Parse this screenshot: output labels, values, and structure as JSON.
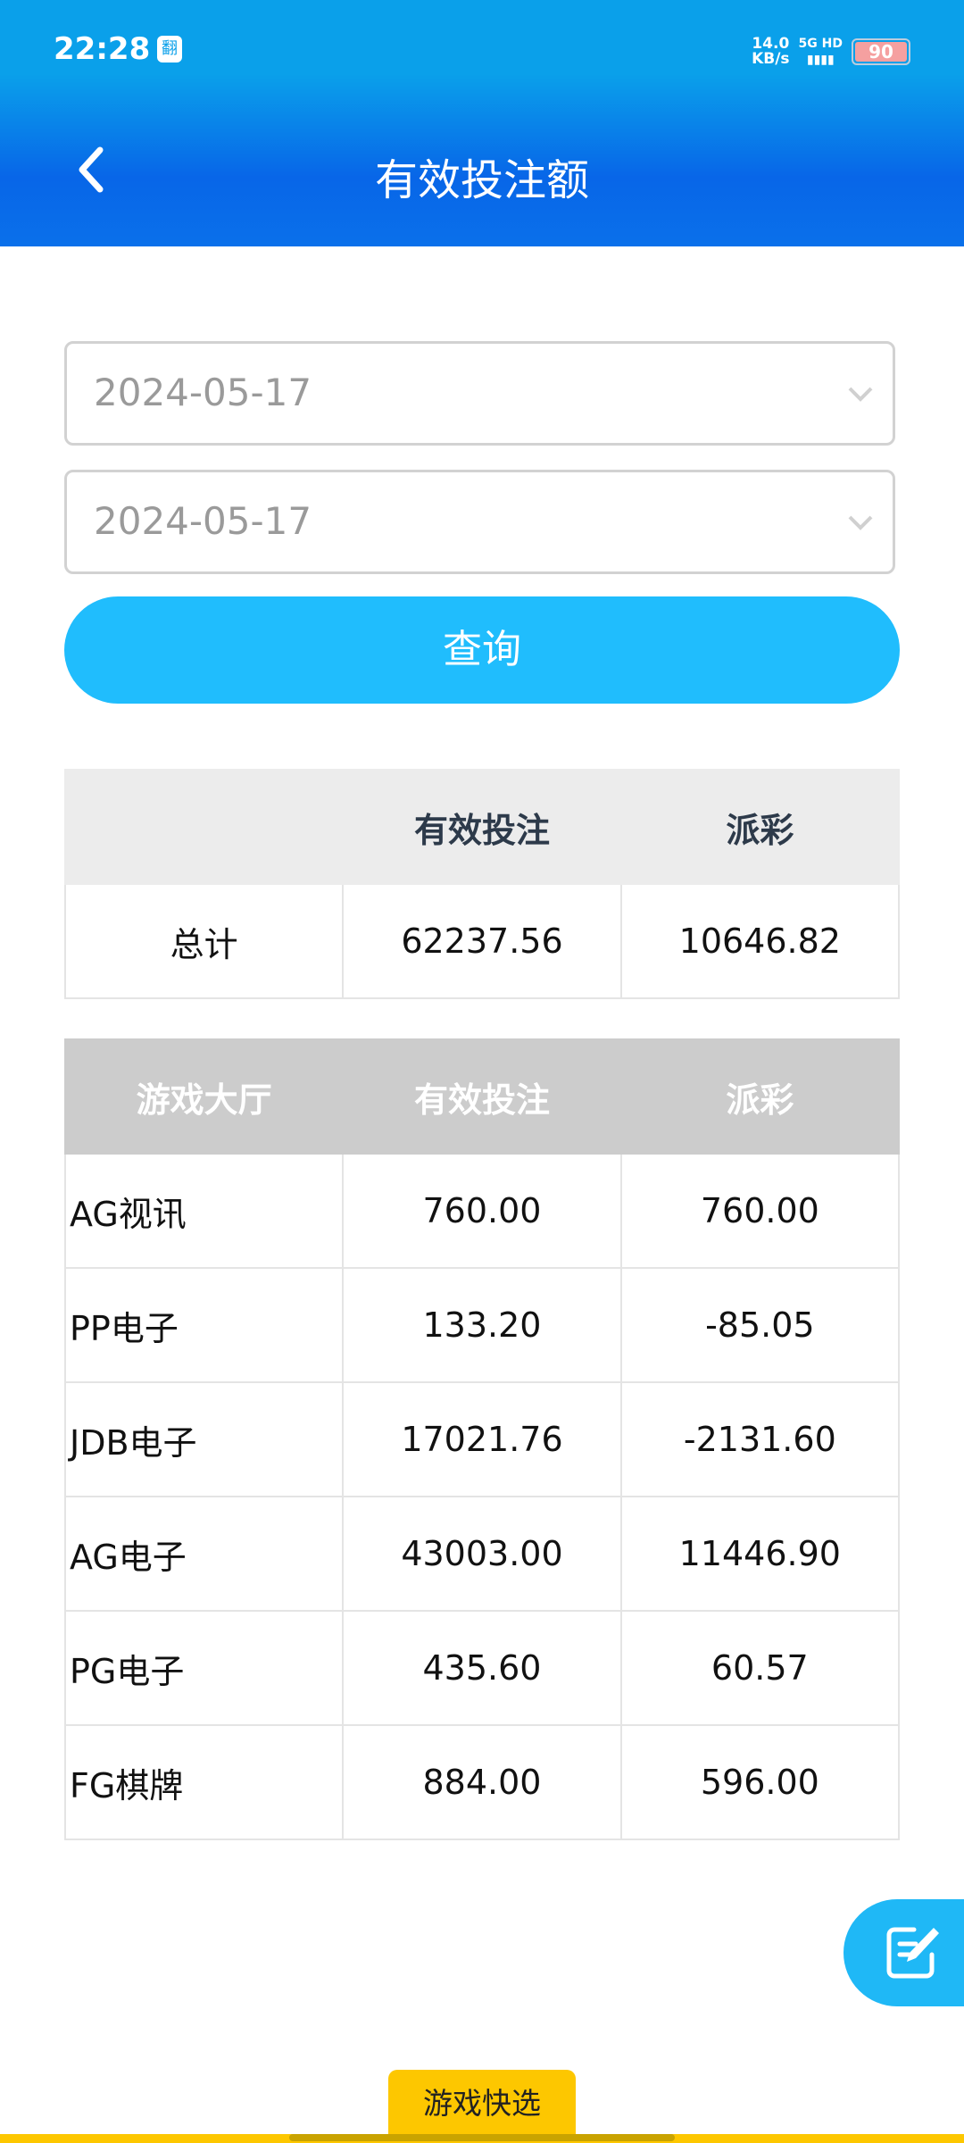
{
  "status_bar": {
    "time": "22:28",
    "app_icon": "翻",
    "speed": "14.0",
    "speed_unit": "KB/s",
    "network": "5G HD",
    "battery": "90"
  },
  "header": {
    "title": "有效投注额",
    "back_icon": "chevron-left-icon"
  },
  "filters": {
    "start_date": "2024-05-17",
    "end_date": "2024-05-17",
    "query_label": "查询"
  },
  "summary": {
    "headers": [
      "",
      "有效投注",
      "派彩"
    ],
    "row": {
      "label": "总计",
      "valid_bet": "62237.56",
      "payout": "10646.82"
    }
  },
  "halls": {
    "headers": [
      "游戏大厅",
      "有效投注",
      "派彩"
    ],
    "rows": [
      {
        "name": "AG视讯",
        "valid_bet": "760.00",
        "payout": "760.00"
      },
      {
        "name": "PP电子",
        "valid_bet": "133.20",
        "payout": "-85.05"
      },
      {
        "name": "JDB电子",
        "valid_bet": "17021.76",
        "payout": "-2131.60"
      },
      {
        "name": "AG电子",
        "valid_bet": "43003.00",
        "payout": "11446.90"
      },
      {
        "name": "PG电子",
        "valid_bet": "435.60",
        "payout": "60.57"
      },
      {
        "name": "FG棋牌",
        "valid_bet": "884.00",
        "payout": "596.00"
      }
    ]
  },
  "quick_select_label": "游戏快选",
  "colors": {
    "header_top": "#0aa0ea",
    "header_bottom": "#0866e8",
    "accent": "#20bdfd",
    "quick_tab": "#fdc700"
  }
}
